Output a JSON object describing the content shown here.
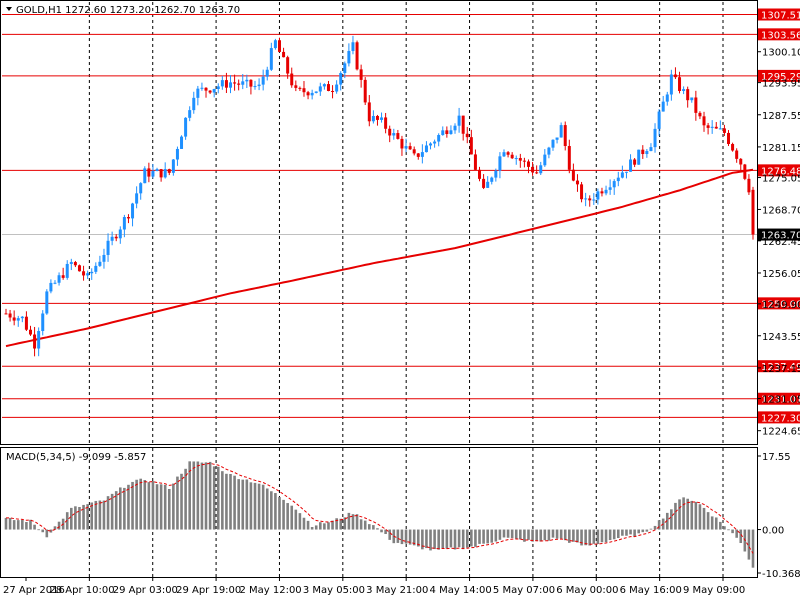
{
  "chart_data": [
    {
      "type": "candlestick",
      "title": "GOLD,H1  1272.60 1273.20 1262.70 1263.70",
      "symbol": "GOLD",
      "timeframe": "H1",
      "ohlc_last": {
        "open": 1272.6,
        "high": 1273.2,
        "low": 1262.7,
        "close": 1263.7
      },
      "ylim": [
        1222.0,
        1310.0
      ],
      "y_ticks": [
        "1300.10",
        "1293.95",
        "1287.55",
        "1281.15",
        "1275.05",
        "1268.70",
        "1262.45",
        "1256.05",
        "1249.90",
        "1243.55",
        "1237.15",
        "1231.05",
        "1224.65"
      ],
      "x_labels": [
        "27 Apr 2016",
        "28 Apr 10:00",
        "29 Apr 03:00",
        "29 Apr 19:00",
        "2 May 12:00",
        "3 May 05:00",
        "3 May 21:00",
        "4 May 14:00",
        "5 May 07:00",
        "6 May 00:00",
        "6 May 16:00",
        "9 May 09:00"
      ],
      "grid": true,
      "up_color": "#1e90ff",
      "down_color": "#e60000",
      "horizontal_levels": [
        {
          "label": "1307.51",
          "value": 1307.51
        },
        {
          "label": "1303.56",
          "value": 1303.56
        },
        {
          "label": "1295.29",
          "value": 1295.29
        },
        {
          "label": "1276.48",
          "value": 1276.48
        },
        {
          "label": "1250.00",
          "value": 1250.0
        },
        {
          "label": "1237.49",
          "value": 1237.49
        },
        {
          "label": "1231.01",
          "value": 1231.01
        },
        {
          "label": "1227.30",
          "value": 1227.3
        }
      ],
      "current_price": {
        "label": "1263.70",
        "value": 1263.7
      },
      "anchors": [
        {
          "i": 0,
          "p": 1248
        },
        {
          "i": 4,
          "p": 1247
        },
        {
          "i": 7,
          "p": 1242
        },
        {
          "i": 10,
          "p": 1252
        },
        {
          "i": 16,
          "p": 1258
        },
        {
          "i": 20,
          "p": 1255
        },
        {
          "i": 27,
          "p": 1264
        },
        {
          "i": 30,
          "p": 1268
        },
        {
          "i": 34,
          "p": 1276
        },
        {
          "i": 40,
          "p": 1276
        },
        {
          "i": 46,
          "p": 1292
        },
        {
          "i": 55,
          "p": 1294
        },
        {
          "i": 62,
          "p": 1293
        },
        {
          "i": 66,
          "p": 1302
        },
        {
          "i": 71,
          "p": 1292
        },
        {
          "i": 80,
          "p": 1293
        },
        {
          "i": 85,
          "p": 1301
        },
        {
          "i": 89,
          "p": 1287
        },
        {
          "i": 92,
          "p": 1286
        },
        {
          "i": 100,
          "p": 1279
        },
        {
          "i": 111,
          "p": 1287
        },
        {
          "i": 117,
          "p": 1272
        },
        {
          "i": 122,
          "p": 1281
        },
        {
          "i": 130,
          "p": 1276
        },
        {
          "i": 136,
          "p": 1285
        },
        {
          "i": 139,
          "p": 1274
        },
        {
          "i": 142,
          "p": 1270
        },
        {
          "i": 152,
          "p": 1277
        },
        {
          "i": 158,
          "p": 1282
        },
        {
          "i": 163,
          "p": 1295
        },
        {
          "i": 168,
          "p": 1290
        },
        {
          "i": 171,
          "p": 1285
        },
        {
          "i": 176,
          "p": 1284
        },
        {
          "i": 180,
          "p": 1278
        },
        {
          "i": 182,
          "p": 1273
        },
        {
          "i": 183,
          "p": 1263.7
        }
      ],
      "moving_average": [
        {
          "i": 0,
          "p": 1241.5
        },
        {
          "i": 20,
          "p": 1245
        },
        {
          "i": 40,
          "p": 1249
        },
        {
          "i": 55,
          "p": 1252
        },
        {
          "i": 70,
          "p": 1254.5
        },
        {
          "i": 90,
          "p": 1258
        },
        {
          "i": 110,
          "p": 1261
        },
        {
          "i": 130,
          "p": 1265
        },
        {
          "i": 150,
          "p": 1269
        },
        {
          "i": 165,
          "p": 1272.5
        },
        {
          "i": 178,
          "p": 1276
        },
        {
          "i": 183,
          "p": 1276.6
        }
      ],
      "candle_count": 184
    },
    {
      "type": "bar",
      "title": "MACD(5,34,5) -9.099 -5.857",
      "indicator": "MACD(5,34,5)",
      "main_value": -9.099,
      "signal_value": -5.857,
      "ylim": [
        -10.368,
        17.55
      ],
      "y_ticks": [
        "17.55",
        "0.00",
        "-10.368"
      ],
      "bar_color": "#808080",
      "signal_color": "#e60000",
      "anchors": [
        {
          "i": 0,
          "v": 2.5
        },
        {
          "i": 6,
          "v": 2.0
        },
        {
          "i": 10,
          "v": -1.5
        },
        {
          "i": 16,
          "v": 5
        },
        {
          "i": 24,
          "v": 7
        },
        {
          "i": 30,
          "v": 11
        },
        {
          "i": 34,
          "v": 12
        },
        {
          "i": 40,
          "v": 10
        },
        {
          "i": 45,
          "v": 16
        },
        {
          "i": 50,
          "v": 16
        },
        {
          "i": 55,
          "v": 13
        },
        {
          "i": 62,
          "v": 11
        },
        {
          "i": 70,
          "v": 6
        },
        {
          "i": 75,
          "v": 1
        },
        {
          "i": 80,
          "v": 2
        },
        {
          "i": 85,
          "v": 4
        },
        {
          "i": 90,
          "v": 1
        },
        {
          "i": 95,
          "v": -3
        },
        {
          "i": 105,
          "v": -5
        },
        {
          "i": 115,
          "v": -4
        },
        {
          "i": 122,
          "v": -2
        },
        {
          "i": 130,
          "v": -3
        },
        {
          "i": 135,
          "v": -2
        },
        {
          "i": 142,
          "v": -4
        },
        {
          "i": 150,
          "v": -2
        },
        {
          "i": 156,
          "v": -1
        },
        {
          "i": 160,
          "v": 2
        },
        {
          "i": 166,
          "v": 8
        },
        {
          "i": 170,
          "v": 6
        },
        {
          "i": 176,
          "v": 1
        },
        {
          "i": 180,
          "v": -3
        },
        {
          "i": 183,
          "v": -9.099
        }
      ]
    }
  ]
}
